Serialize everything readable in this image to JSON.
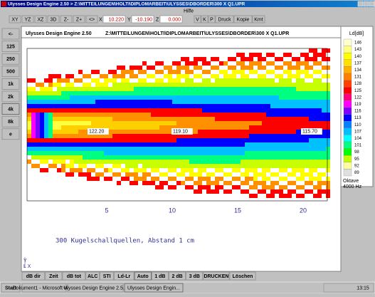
{
  "window": {
    "title": "Ulysses Design Engine 2.50 > Z:\\MITTEILUNGEN\\HOLTI\\DIPLOMARBEIT\\ULYSSES\\DBORDER\\300 X Q1.UPR"
  },
  "menu": [
    "Hilfe"
  ],
  "toolbar": {
    "buttons": [
      "XY",
      "YZ",
      "XZ",
      "3D",
      "Z-",
      "Z+",
      "<>"
    ],
    "fields": [
      {
        "label": "X",
        "value": "10.220"
      },
      {
        "label": "Y",
        "value": "-10.190"
      },
      {
        "label": "Z",
        "value": "0.000"
      }
    ],
    "actions": [
      "V",
      "K",
      "P",
      "Druck",
      "Kopie",
      "Kmt"
    ]
  },
  "sidebar": [
    "<-",
    "125",
    "250",
    "500",
    "1k",
    "2k",
    "4k",
    "8k",
    "e"
  ],
  "panel": {
    "app": "Ulysses Design Engine 2.50",
    "path": "Z:\\MITTEILUNGEN\\HOLTI\\DIPLOMARBEIT\\ULYSSES\\DBORDER\\300 X Q1.UPR",
    "labels": [
      "122.20",
      "119.10",
      "115.70"
    ],
    "xticks": [
      5,
      10,
      15,
      20
    ],
    "caption": "300 Kugelschallquellen, Abstand 1 cm",
    "axes": [
      "Y",
      "L X"
    ]
  },
  "legend": {
    "title": "Ld[dB]",
    "levels": [
      "146",
      "143",
      "140",
      "137",
      "134",
      "131",
      "128",
      "125",
      "122",
      "119",
      "116",
      "113",
      "110",
      "107",
      "104",
      "101",
      "98",
      "95",
      "92",
      "89"
    ],
    "footer": [
      "Oktave",
      "4000 Hz"
    ]
  },
  "bottom_buttons": [
    "dB dir",
    "Zeit",
    "dB tot",
    "ALC",
    "STI",
    "Ld-Lr",
    "Auto",
    "1 dB",
    "2 dB",
    "3 dB",
    "DRUCKEN",
    "Löschen"
  ],
  "taskbar": {
    "start": "Start",
    "items": [
      "Dokument1 - Microsoft Word",
      "Ulysses Design Engine 2.5...",
      "Ulysses Design Engin..."
    ],
    "clock": "13:15"
  }
}
